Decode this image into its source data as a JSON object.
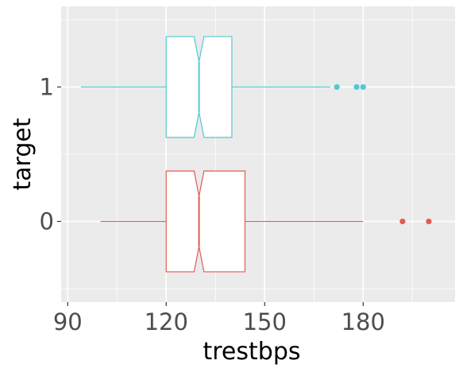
{
  "chart_data": {
    "type": "boxplot",
    "orientation": "horizontal",
    "notched": true,
    "xlabel": "trestbps",
    "ylabel": "target",
    "xlim": [
      88,
      208
    ],
    "x_ticks": [
      90,
      120,
      150,
      180
    ],
    "categories": [
      "0",
      "1"
    ],
    "series": [
      {
        "name": "0",
        "color": "#e05c52",
        "whisker_low": 100,
        "q1": 120,
        "median": 130,
        "q3": 144,
        "whisker_high": 180,
        "notch_low": 128.5,
        "notch_high": 131.5,
        "outliers": [
          192,
          200
        ]
      },
      {
        "name": "1",
        "color": "#4ecad3",
        "whisker_low": 94,
        "q1": 120,
        "median": 130,
        "q3": 140,
        "whisker_high": 170,
        "notch_low": 128.5,
        "notch_high": 131.5,
        "outliers": [
          172,
          178,
          180
        ]
      }
    ],
    "panel_background": "#ebebeb",
    "grid": true,
    "grid_color": "#ffffff",
    "legend": "none"
  }
}
